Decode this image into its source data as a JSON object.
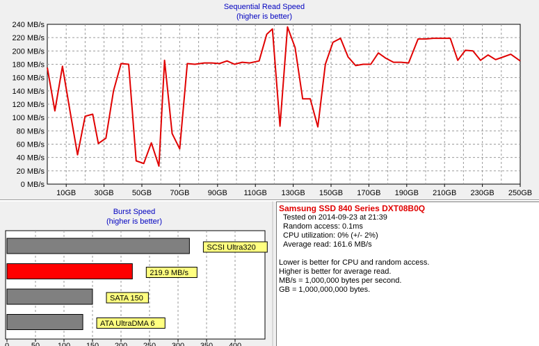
{
  "chart_data": [
    {
      "type": "line",
      "title": "Sequential Read Speed",
      "subtitle": "(higher is better)",
      "ylim": [
        0,
        240
      ],
      "xlim": [
        0,
        250
      ],
      "yticks": [
        0,
        20,
        40,
        60,
        80,
        100,
        120,
        140,
        160,
        180,
        200,
        220,
        240
      ],
      "ytick_labels": [
        "0 MB/s",
        "20 MB/s",
        "40 MB/s",
        "60 MB/s",
        "80 MB/s",
        "100 MB/s",
        "120 MB/s",
        "140 MB/s",
        "160 MB/s",
        "180 MB/s",
        "200 MB/s",
        "220 MB/s",
        "240 MB/s"
      ],
      "xticks": [
        10,
        30,
        50,
        70,
        90,
        110,
        130,
        150,
        170,
        190,
        210,
        230,
        250
      ],
      "xtick_labels": [
        "10GB",
        "30GB",
        "50GB",
        "70GB",
        "90GB",
        "110GB",
        "130GB",
        "150GB",
        "170GB",
        "190GB",
        "210GB",
        "230GB",
        "250GB"
      ],
      "grid": true,
      "color": "#e00000",
      "series": [
        {
          "x": [
            0,
            4,
            8,
            12,
            16,
            20,
            24,
            27,
            31,
            35,
            39,
            43,
            47,
            51,
            55,
            59,
            62,
            66,
            70,
            74,
            78,
            83,
            87,
            91,
            95,
            99,
            103,
            107,
            112,
            116,
            119,
            123,
            127,
            131,
            135,
            139,
            143,
            147,
            151,
            155,
            159,
            163,
            167,
            171,
            175,
            179,
            183,
            187,
            191,
            196,
            200,
            204,
            208,
            213,
            217,
            221,
            225,
            229,
            233,
            237,
            241,
            245,
            250
          ],
          "y": [
            175,
            110,
            177,
            110,
            44,
            102,
            105,
            61,
            69,
            140,
            181,
            180,
            35,
            31,
            62,
            27,
            186,
            76,
            53,
            181,
            180,
            182,
            182,
            181,
            185,
            180,
            183,
            182,
            185,
            225,
            233,
            87,
            236,
            205,
            128,
            128,
            86,
            180,
            213,
            219,
            191,
            178,
            180,
            180,
            197,
            189,
            183,
            183,
            182,
            218,
            218,
            219,
            219,
            219,
            186,
            201,
            200,
            186,
            194,
            187,
            191,
            195,
            185
          ]
        }
      ]
    },
    {
      "type": "bar",
      "title": "Burst Speed",
      "subtitle": "(higher is better)",
      "xlim": [
        0,
        450
      ],
      "xticks": [
        0,
        50,
        100,
        150,
        200,
        250,
        300,
        350,
        400
      ],
      "xtick_labels": [
        "0",
        "50",
        "100",
        "150",
        "200",
        "250",
        "300",
        "350",
        "400"
      ],
      "categories": [
        "SCSI Ultra320",
        "219.9 MB/s",
        "SATA 150",
        "ATA UltraDMA 6"
      ],
      "values": [
        320,
        219.9,
        150,
        133
      ],
      "colors": [
        "#808080",
        "#ff0000",
        "#808080",
        "#808080"
      ],
      "label_bg": "#ffff80"
    }
  ],
  "info": {
    "title": "Samsung SSD 840 Series DXT08B0Q",
    "tested_on": "Tested on 2014-09-23 at 21:39",
    "random_access": "Random access: 0.1ms",
    "cpu_util": "CPU utilization: 0% (+/- 2%)",
    "avg_read": "Average read: 161.6 MB/s",
    "notes": [
      "Lower is better for CPU and random access.",
      "Higher is better for average read.",
      "MB/s = 1,000,000 bytes per second.",
      "GB = 1,000,000,000 bytes."
    ]
  }
}
